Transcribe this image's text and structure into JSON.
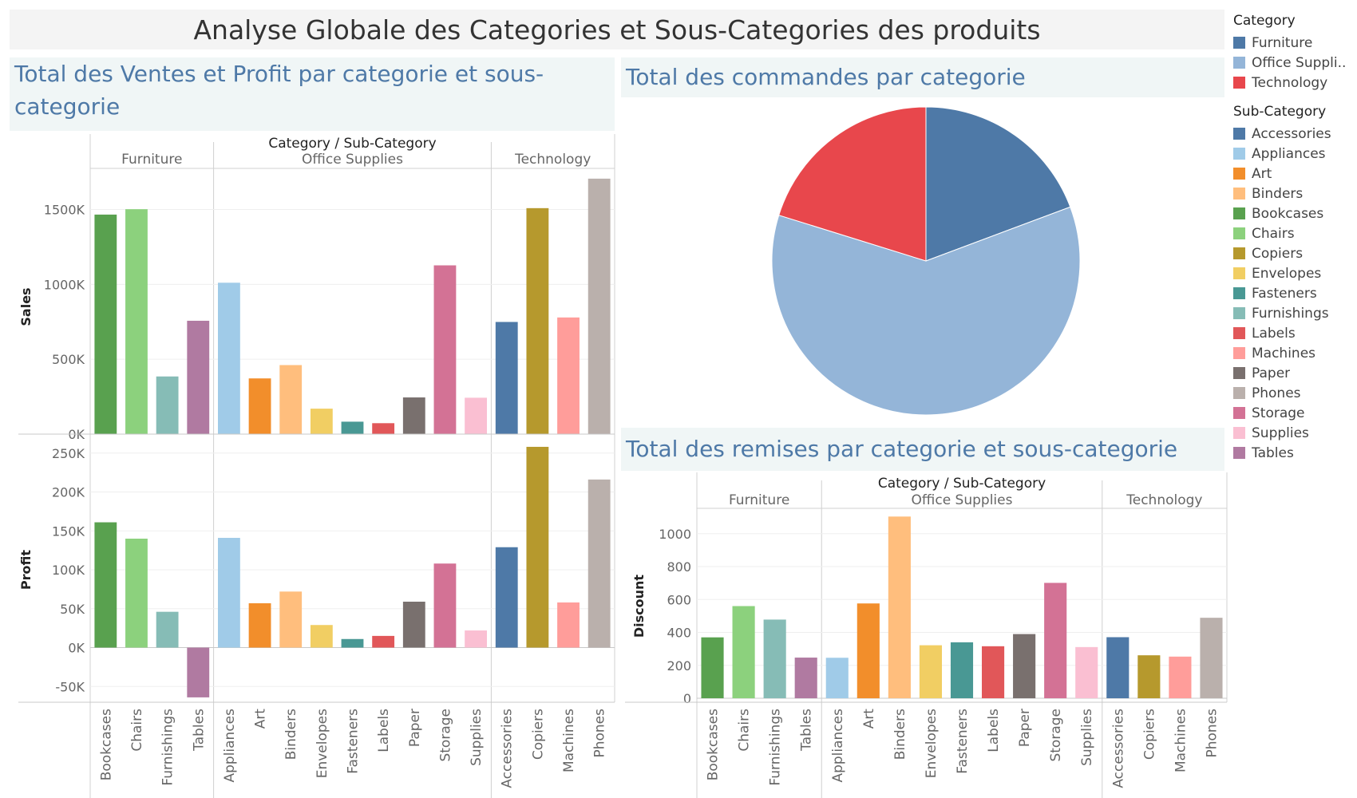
{
  "page_title": "Analyse Globale des Categories et Sous-Categories des produits",
  "panels": {
    "sales_profit_title": "Total des Ventes et Profit par categorie et sous-categorie",
    "orders_title": "Total des commandes par categorie",
    "discount_title": "Total des remises par categorie et sous-categorie"
  },
  "legend": {
    "category_title": "Category",
    "categories": [
      {
        "label": "Furniture",
        "color": "#4e79a7"
      },
      {
        "label": "Office Suppli..",
        "color": "#94b5d8"
      },
      {
        "label": "Technology",
        "color": "#e8474c"
      }
    ],
    "subcategory_title": "Sub-Category",
    "subcategories": [
      {
        "label": "Accessories",
        "color": "#4e79a7"
      },
      {
        "label": "Appliances",
        "color": "#a0cbe8"
      },
      {
        "label": "Art",
        "color": "#f28e2b"
      },
      {
        "label": "Binders",
        "color": "#ffbe7d"
      },
      {
        "label": "Bookcases",
        "color": "#59a14f"
      },
      {
        "label": "Chairs",
        "color": "#8cd17d"
      },
      {
        "label": "Copiers",
        "color": "#b6992d"
      },
      {
        "label": "Envelopes",
        "color": "#f1ce63"
      },
      {
        "label": "Fasteners",
        "color": "#499894"
      },
      {
        "label": "Furnishings",
        "color": "#86bcb6"
      },
      {
        "label": "Labels",
        "color": "#e15759"
      },
      {
        "label": "Machines",
        "color": "#ff9d9a"
      },
      {
        "label": "Paper",
        "color": "#79706e"
      },
      {
        "label": "Phones",
        "color": "#bab0ac"
      },
      {
        "label": "Storage",
        "color": "#d37295"
      },
      {
        "label": "Supplies",
        "color": "#fabfd2"
      },
      {
        "label": "Tables",
        "color": "#b07aa1"
      }
    ]
  },
  "chart_data": [
    {
      "type": "bar",
      "chart": "sales_profit",
      "header_title": "Category / Sub-Category",
      "groups": [
        {
          "name": "Furniture",
          "items": [
            "Bookcases",
            "Chairs",
            "Furnishings",
            "Tables"
          ]
        },
        {
          "name": "Office Supplies",
          "items": [
            "Appliances",
            "Art",
            "Binders",
            "Envelopes",
            "Fasteners",
            "Labels",
            "Paper",
            "Storage",
            "Supplies"
          ]
        },
        {
          "name": "Technology",
          "items": [
            "Accessories",
            "Copiers",
            "Machines",
            "Phones"
          ]
        }
      ],
      "colors": {
        "Bookcases": "#59a14f",
        "Chairs": "#8cd17d",
        "Furnishings": "#86bcb6",
        "Tables": "#b07aa1",
        "Appliances": "#a0cbe8",
        "Art": "#f28e2b",
        "Binders": "#ffbe7d",
        "Envelopes": "#f1ce63",
        "Fasteners": "#499894",
        "Labels": "#e15759",
        "Paper": "#79706e",
        "Storage": "#d37295",
        "Supplies": "#fabfd2",
        "Accessories": "#4e79a7",
        "Copiers": "#b6992d",
        "Machines": "#ff9d9a",
        "Phones": "#bab0ac"
      },
      "series": [
        {
          "name": "Sales",
          "ylim": [
            0,
            1700000
          ],
          "ticks": [
            0,
            500000,
            1000000,
            1500000
          ],
          "tick_labels": [
            "0K",
            "500K",
            "1000K",
            "1500K"
          ],
          "values": {
            "Bookcases": 1466000,
            "Chairs": 1502000,
            "Furnishings": 385000,
            "Tables": 757000,
            "Appliances": 1011000,
            "Art": 372000,
            "Binders": 461000,
            "Envelopes": 170000,
            "Fasteners": 83000,
            "Labels": 73000,
            "Paper": 245000,
            "Storage": 1127000,
            "Supplies": 243000,
            "Accessories": 749000,
            "Copiers": 1509000,
            "Machines": 779000,
            "Phones": 1706000
          }
        },
        {
          "name": "Profit",
          "ylim": [
            -60000,
            260000
          ],
          "ticks": [
            -50000,
            0,
            50000,
            100000,
            150000,
            200000,
            250000
          ],
          "tick_labels": [
            "-50K",
            "0K",
            "50K",
            "100K",
            "150K",
            "200K",
            "250K"
          ],
          "values": {
            "Bookcases": 161000,
            "Chairs": 140000,
            "Furnishings": 46000,
            "Tables": -64000,
            "Appliances": 141000,
            "Art": 57000,
            "Binders": 72000,
            "Envelopes": 29000,
            "Fasteners": 11000,
            "Labels": 15000,
            "Paper": 59000,
            "Storage": 108000,
            "Supplies": 22000,
            "Accessories": 129000,
            "Copiers": 258000,
            "Machines": 58000,
            "Phones": 216000
          }
        }
      ]
    },
    {
      "type": "pie",
      "chart": "orders_by_category",
      "slices": [
        {
          "label": "Furniture",
          "value": 19.3,
          "color": "#4e79a7"
        },
        {
          "label": "Office Supplies",
          "value": 60.5,
          "color": "#94b5d8"
        },
        {
          "label": "Technology",
          "value": 20.2,
          "color": "#e8474c"
        }
      ]
    },
    {
      "type": "bar",
      "chart": "discount",
      "header_title": "Category / Sub-Category",
      "ylabel": "Discount",
      "ylim": [
        0,
        1120
      ],
      "ticks": [
        0,
        200,
        400,
        600,
        800,
        1000
      ],
      "tick_labels": [
        "0",
        "200",
        "400",
        "600",
        "800",
        "1000"
      ],
      "groups": [
        {
          "name": "Furniture",
          "items": [
            "Bookcases",
            "Chairs",
            "Furnishings",
            "Tables"
          ]
        },
        {
          "name": "Office Supplies",
          "items": [
            "Appliances",
            "Art",
            "Binders",
            "Envelopes",
            "Fasteners",
            "Labels",
            "Paper",
            "Storage",
            "Supplies"
          ]
        },
        {
          "name": "Technology",
          "items": [
            "Accessories",
            "Copiers",
            "Machines",
            "Phones"
          ]
        }
      ],
      "values": {
        "Bookcases": 370,
        "Chairs": 560,
        "Furnishings": 478,
        "Tables": 247,
        "Appliances": 246,
        "Art": 576,
        "Binders": 1104,
        "Envelopes": 322,
        "Fasteners": 340,
        "Labels": 316,
        "Paper": 390,
        "Storage": 701,
        "Supplies": 311,
        "Accessories": 371,
        "Copiers": 261,
        "Machines": 253,
        "Phones": 489
      }
    }
  ]
}
